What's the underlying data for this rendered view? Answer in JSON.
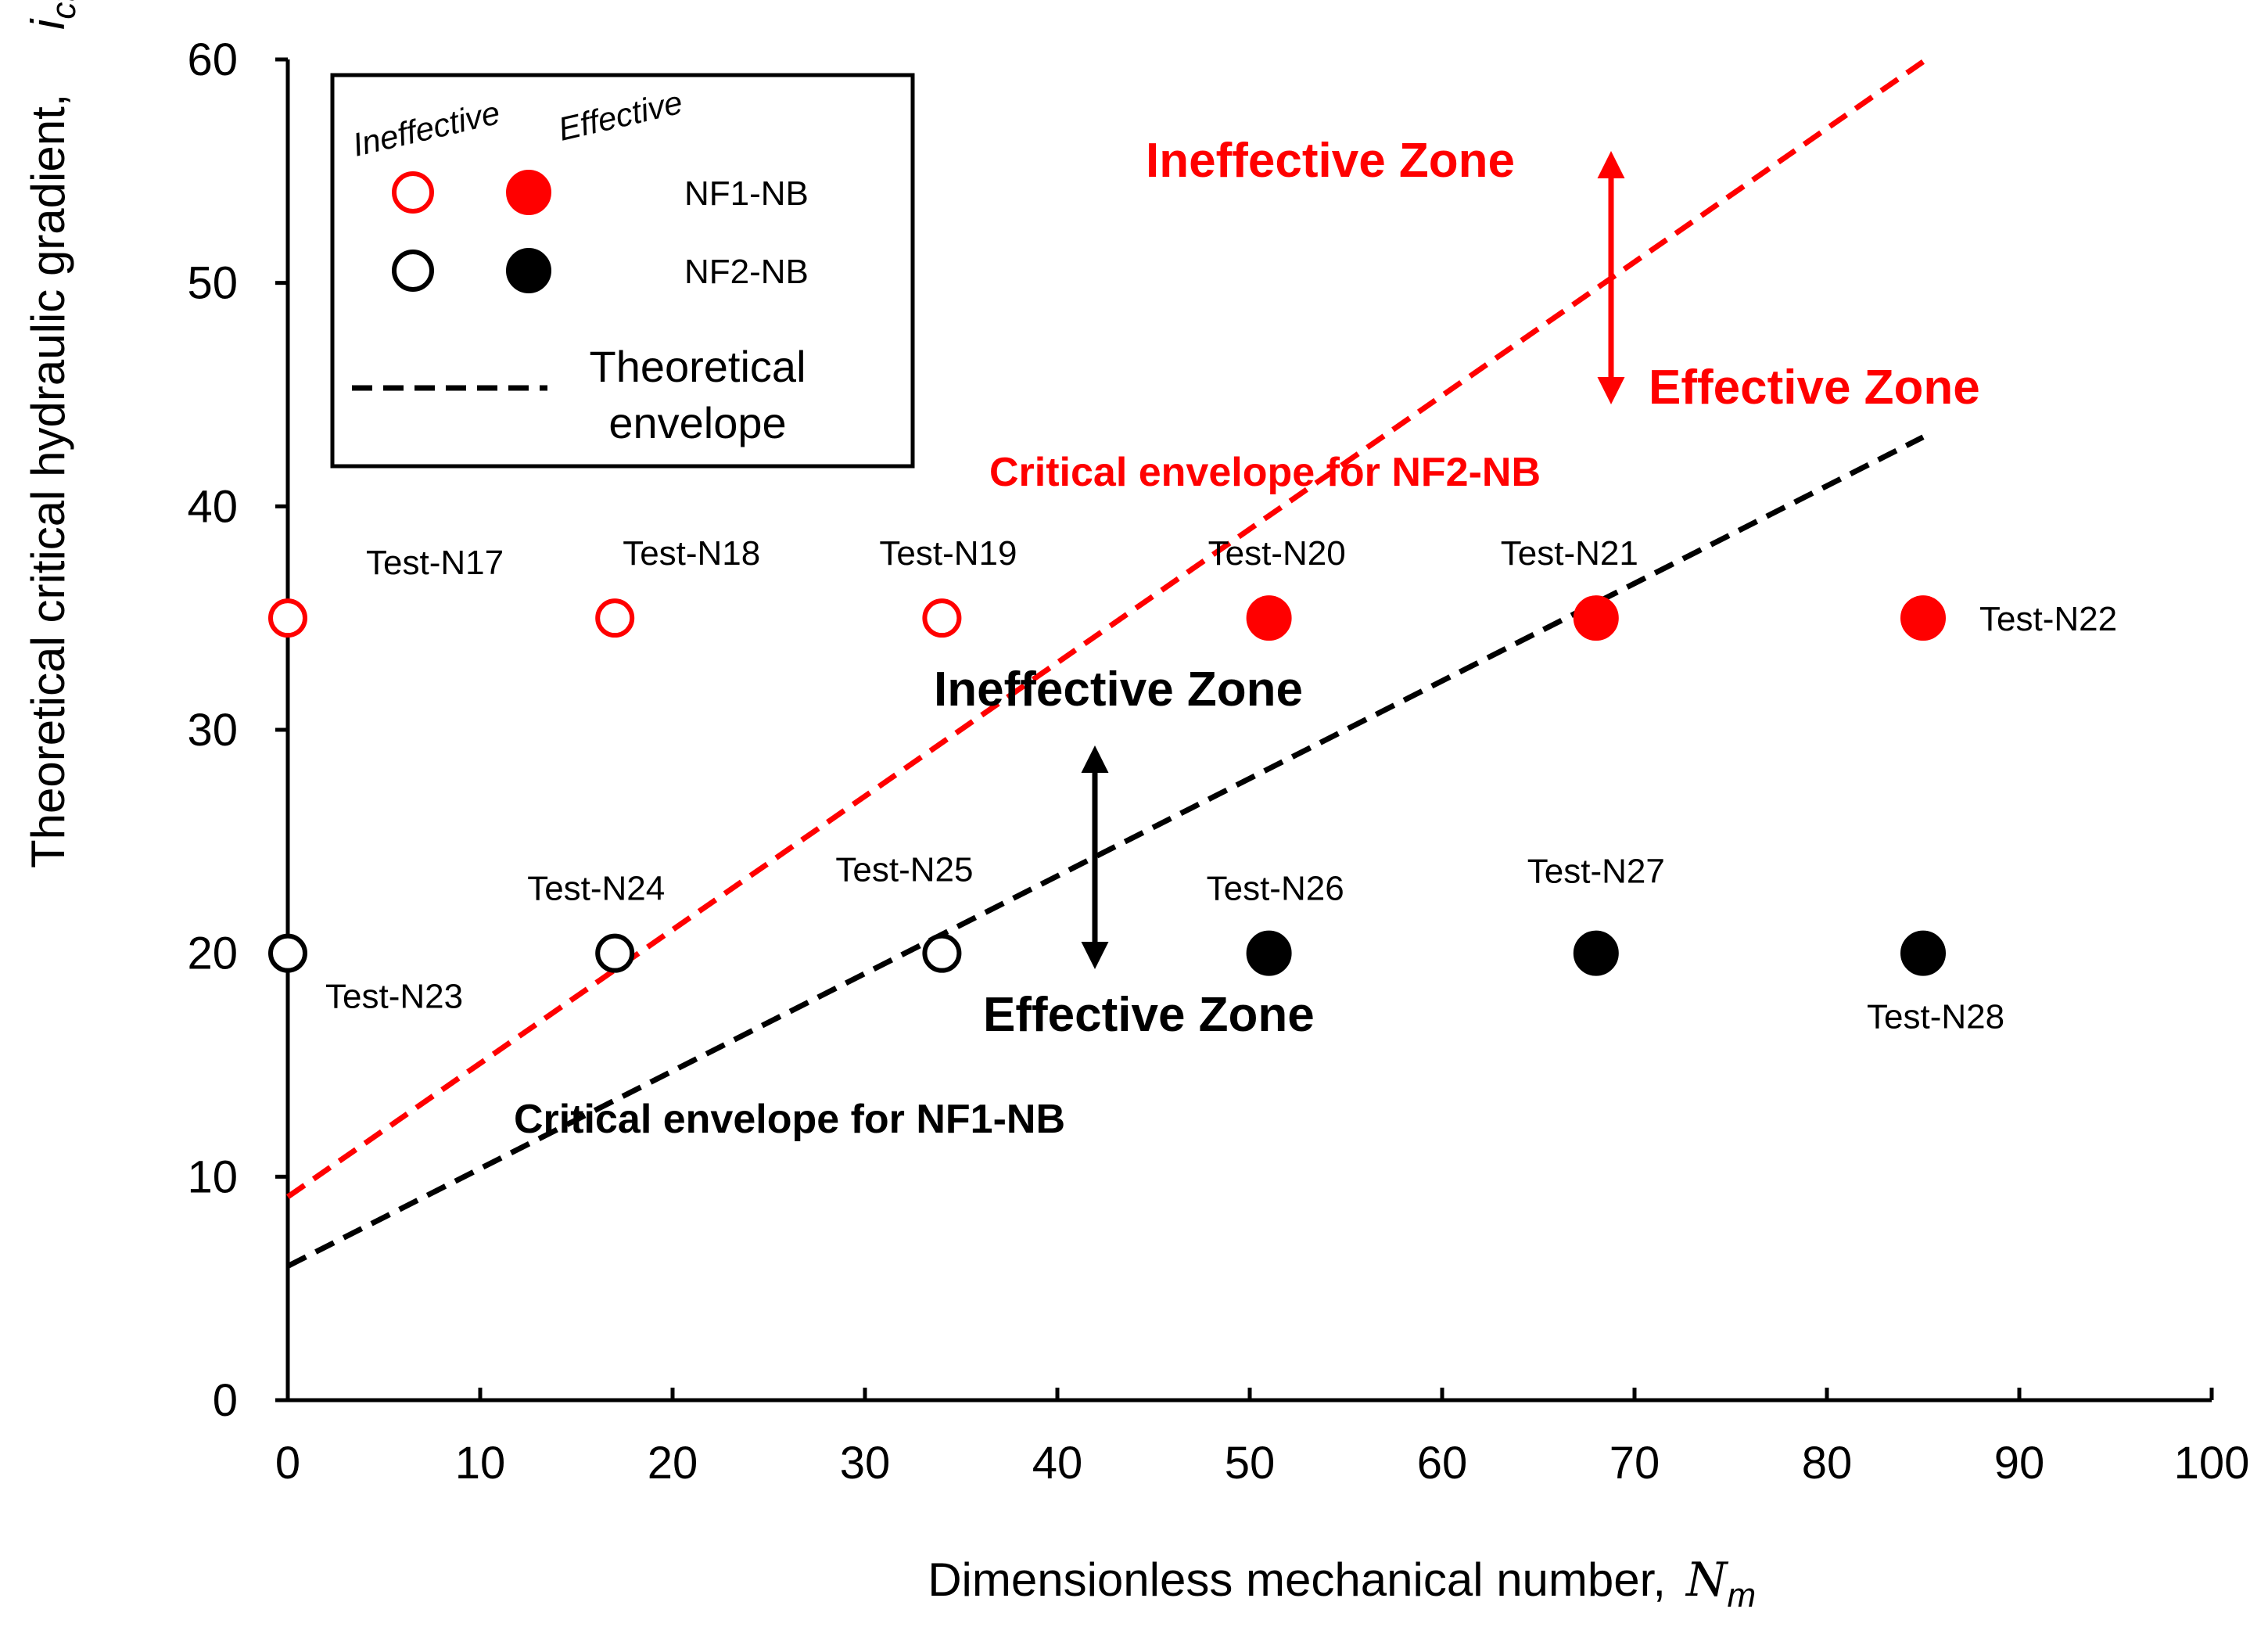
{
  "chart_data": {
    "type": "scatter",
    "xlabel": "Dimensionless mechanical number,",
    "xlabel_symbol": "Nm",
    "ylabel": "Theoretical critical hydraulic gradient,",
    "ylabel_symbol": "ict",
    "xlim": [
      0,
      100
    ],
    "ylim": [
      0,
      60
    ],
    "xticks": [
      0,
      10,
      20,
      30,
      40,
      50,
      60,
      70,
      80,
      90,
      100
    ],
    "yticks": [
      0,
      10,
      20,
      30,
      40,
      50,
      60
    ],
    "grid": false,
    "legend_position": "top-left",
    "legend": {
      "head_ineffective": "Ineffective",
      "head_effective": "Effective",
      "series_1": "NF1-NB",
      "series_2": "NF2-NB",
      "envelope_line1": "Theoretical",
      "envelope_line2": "envelope"
    },
    "series": [
      {
        "name": "NF1-NB",
        "color": "#ff0000",
        "points": [
          {
            "label": "Test-N17",
            "x": 0,
            "y": 35,
            "state": "ineffective"
          },
          {
            "label": "Test-N18",
            "x": 17,
            "y": 35,
            "state": "ineffective"
          },
          {
            "label": "Test-N19",
            "x": 34,
            "y": 35,
            "state": "ineffective"
          },
          {
            "label": "Test-N20",
            "x": 51,
            "y": 35,
            "state": "effective"
          },
          {
            "label": "Test-N21",
            "x": 68,
            "y": 35,
            "state": "effective"
          },
          {
            "label": "Test-N22",
            "x": 85,
            "y": 35,
            "state": "effective"
          }
        ]
      },
      {
        "name": "NF2-NB",
        "color": "#000000",
        "points": [
          {
            "label": "Test-N23",
            "x": 0,
            "y": 20,
            "state": "ineffective"
          },
          {
            "label": "Test-N24",
            "x": 17,
            "y": 20,
            "state": "ineffective"
          },
          {
            "label": "Test-N25",
            "x": 34,
            "y": 20,
            "state": "ineffective"
          },
          {
            "label": "Test-N26",
            "x": 51,
            "y": 20,
            "state": "effective"
          },
          {
            "label": "Test-N27",
            "x": 68,
            "y": 20,
            "state": "effective"
          },
          {
            "label": "Test-N28",
            "x": 85,
            "y": 20,
            "state": "effective"
          }
        ]
      }
    ],
    "envelopes": [
      {
        "label": "Critical envelope for NF2-NB",
        "color": "#ff0000",
        "x": [
          0,
          85
        ],
        "y": [
          9.1,
          59.9
        ]
      },
      {
        "label": "Critical envelope for NF1-NB",
        "color": "#000000",
        "x": [
          0,
          85
        ],
        "y": [
          6.0,
          43.1
        ]
      }
    ],
    "annotations": {
      "red_ineffective": "Ineffective Zone",
      "red_effective": "Effective Zone",
      "black_ineffective": "Ineffective Zone",
      "black_effective": "Effective Zone"
    }
  }
}
